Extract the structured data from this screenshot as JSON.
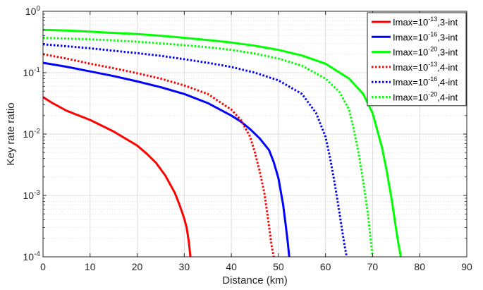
{
  "chart_data": {
    "type": "line",
    "title": "",
    "xlabel": "Distance (km)",
    "ylabel": "Key rate ratio",
    "xlim": [
      0,
      90
    ],
    "ylim": [
      0.0001,
      1
    ],
    "yscale": "log",
    "grid": true,
    "minor_grid": true,
    "legend_position": "top-right",
    "x_ticks": [
      0,
      10,
      20,
      30,
      40,
      50,
      60,
      70,
      80,
      90
    ],
    "y_ticks": [
      0.0001,
      0.001,
      0.01,
      0.1,
      1
    ],
    "y_tick_labels": [
      {
        "base": "10",
        "exp": "-4"
      },
      {
        "base": "10",
        "exp": "-3"
      },
      {
        "base": "10",
        "exp": "-2"
      },
      {
        "base": "10",
        "exp": "-1"
      },
      {
        "base": "10",
        "exp": "0"
      }
    ],
    "series": [
      {
        "legend_prefix": "Imax=10",
        "legend_exp": "-13",
        "legend_suffix": ",3-int",
        "color": "#ff0000",
        "style": "solid",
        "x": [
          0,
          2,
          5,
          10,
          15,
          20,
          22,
          24,
          26,
          28,
          29,
          30,
          30.5,
          31,
          31.3
        ],
        "y": [
          0.04,
          0.032,
          0.024,
          0.017,
          0.011,
          0.0065,
          0.0048,
          0.0034,
          0.0021,
          0.0011,
          0.0007,
          0.00042,
          0.0003,
          0.00017,
          0.0001
        ]
      },
      {
        "legend_prefix": "Imax=10",
        "legend_exp": "-16",
        "legend_suffix": ",3-int",
        "color": "#0000ff",
        "style": "solid",
        "x": [
          0,
          5,
          10,
          15,
          20,
          25,
          30,
          35,
          40,
          42,
          44,
          46,
          48,
          49,
          50,
          51,
          51.5,
          52,
          52.3
        ],
        "y": [
          0.145,
          0.125,
          0.105,
          0.088,
          0.072,
          0.058,
          0.045,
          0.032,
          0.02,
          0.016,
          0.012,
          0.0085,
          0.0055,
          0.0035,
          0.0019,
          0.0007,
          0.00035,
          0.00017,
          0.0001
        ]
      },
      {
        "legend_prefix": "Imax=10",
        "legend_exp": "-20",
        "legend_suffix": ",3-int",
        "color": "#00ff00",
        "style": "solid",
        "x": [
          0,
          5,
          10,
          15,
          20,
          25,
          30,
          35,
          40,
          45,
          50,
          55,
          60,
          65,
          68,
          70,
          72,
          73,
          74,
          75,
          75.5,
          76
        ],
        "y": [
          0.5,
          0.485,
          0.465,
          0.445,
          0.425,
          0.4,
          0.37,
          0.34,
          0.31,
          0.275,
          0.235,
          0.19,
          0.14,
          0.08,
          0.045,
          0.022,
          0.006,
          0.0025,
          0.0009,
          0.00028,
          0.00016,
          0.0001
        ]
      },
      {
        "legend_prefix": "Imax=10",
        "legend_exp": "-13",
        "legend_suffix": ",4-int",
        "color": "#ff0000",
        "style": "dotted",
        "x": [
          0,
          5,
          10,
          15,
          20,
          25,
          30,
          35,
          40,
          42,
          44,
          45,
          46,
          47,
          47.5,
          48,
          48.5,
          49
        ],
        "y": [
          0.2,
          0.17,
          0.14,
          0.118,
          0.098,
          0.08,
          0.062,
          0.045,
          0.025,
          0.017,
          0.009,
          0.005,
          0.0025,
          0.0011,
          0.0006,
          0.00032,
          0.00016,
          0.0001
        ]
      },
      {
        "legend_prefix": "Imax=10",
        "legend_exp": "-16",
        "legend_suffix": ",4-int",
        "color": "#0000ff",
        "style": "dotted",
        "x": [
          0,
          5,
          10,
          15,
          20,
          25,
          30,
          35,
          40,
          45,
          50,
          55,
          58,
          60,
          61,
          62,
          63,
          63.5,
          64,
          64.5
        ],
        "y": [
          0.29,
          0.27,
          0.25,
          0.228,
          0.208,
          0.188,
          0.166,
          0.145,
          0.124,
          0.1,
          0.075,
          0.045,
          0.022,
          0.009,
          0.004,
          0.0015,
          0.0005,
          0.00028,
          0.00016,
          0.0001
        ]
      },
      {
        "legend_prefix": "Imax=10",
        "legend_exp": "-20",
        "legend_suffix": ",4-int",
        "color": "#00ff00",
        "style": "dotted",
        "x": [
          0,
          5,
          10,
          15,
          20,
          25,
          30,
          35,
          40,
          45,
          50,
          55,
          60,
          63,
          65,
          66,
          67,
          68,
          69,
          69.5,
          70
        ],
        "y": [
          0.37,
          0.36,
          0.35,
          0.335,
          0.32,
          0.3,
          0.28,
          0.26,
          0.235,
          0.205,
          0.17,
          0.13,
          0.08,
          0.048,
          0.025,
          0.012,
          0.005,
          0.0017,
          0.0005,
          0.00022,
          0.0001
        ]
      }
    ]
  }
}
